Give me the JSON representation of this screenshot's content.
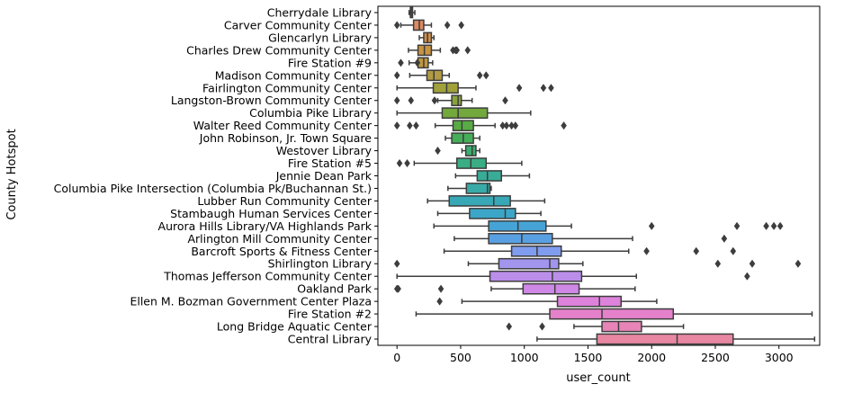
{
  "chart_data": {
    "type": "boxplot",
    "orientation": "horizontal",
    "xlabel": "user_count",
    "ylabel": "County Hotspot",
    "xlim": [
      -150,
      3320
    ],
    "xticks": [
      0,
      500,
      1000,
      1500,
      2000,
      2500,
      3000
    ],
    "grid": false,
    "categories": [
      "Cherrydale Library",
      "Carver Community Center",
      "Glencarlyn Library",
      "Charles Drew Community Center",
      "Fire Station #9",
      "Madison Community Center",
      "Fairlington Community Center",
      "Langston-Brown Community Center",
      "Columbia Pike Library",
      "Walter Reed Community Center",
      "John Robinson, Jr. Town Square",
      "Westover Library",
      "Fire Station #5",
      "Jennie Dean Park",
      "Columbia Pike Intersection (Columbia Pk/Buchannan St.)",
      "Lubber Run Community Center",
      "Stambaugh  Human Services Center",
      "Aurora Hills Library/VA Highlands Park",
      "Arlington Mill Community Center",
      "Barcroft Sports & Fitness Center",
      "Shirlington Library",
      "Thomas Jefferson Community Center",
      "Oakland Park",
      "Ellen M. Bozman Government Center Plaza",
      "Fire Station #2",
      "Long Bridge Aquatic Center",
      "Central Library"
    ],
    "boxes": [
      {
        "whislo": 95,
        "q1": 105,
        "med": 112,
        "q3": 122,
        "whishi": 140,
        "fliers": [],
        "color": "#e8827c"
      },
      {
        "whislo": 30,
        "q1": 130,
        "med": 175,
        "q3": 210,
        "whishi": 270,
        "fliers": [
          0,
          395,
          505
        ],
        "color": "#dc8a5f"
      },
      {
        "whislo": 175,
        "q1": 210,
        "med": 240,
        "q3": 270,
        "whishi": 290,
        "fliers": [],
        "color": "#d28f46"
      },
      {
        "whislo": 90,
        "q1": 165,
        "med": 215,
        "q3": 270,
        "whishi": 340,
        "fliers": [
          440,
          460,
          470,
          555
        ],
        "color": "#c99440"
      },
      {
        "whislo": 95,
        "q1": 165,
        "med": 210,
        "q3": 245,
        "whishi": 280,
        "fliers": [
          30,
          160
        ],
        "color": "#be9740"
      },
      {
        "whislo": 100,
        "q1": 235,
        "med": 290,
        "q3": 355,
        "whishi": 410,
        "fliers": [
          0,
          650,
          700
        ],
        "color": "#b29b42"
      },
      {
        "whislo": 0,
        "q1": 285,
        "med": 390,
        "q3": 480,
        "whishi": 620,
        "fliers": [
          960,
          1150,
          1210
        ],
        "color": "#a1a13c"
      },
      {
        "whislo": 320,
        "q1": 430,
        "med": 480,
        "q3": 505,
        "whishi": 590,
        "fliers": [
          0,
          110,
          295,
          850
        ],
        "color": "#8aa43c"
      },
      {
        "whislo": 0,
        "q1": 355,
        "med": 480,
        "q3": 710,
        "whishi": 1050,
        "fliers": [],
        "color": "#72a83c"
      },
      {
        "whislo": 300,
        "q1": 440,
        "med": 510,
        "q3": 600,
        "whishi": 770,
        "fliers": [
          0,
          100,
          150,
          830,
          860,
          900,
          930,
          1310
        ],
        "color": "#58ab45"
      },
      {
        "whislo": 380,
        "q1": 430,
        "med": 520,
        "q3": 600,
        "whishi": 650,
        "fliers": [],
        "color": "#45ae58"
      },
      {
        "whislo": 510,
        "q1": 540,
        "med": 590,
        "q3": 620,
        "whishi": 650,
        "fliers": [
          320
        ],
        "color": "#3fad70"
      },
      {
        "whislo": 135,
        "q1": 470,
        "med": 580,
        "q3": 700,
        "whishi": 980,
        "fliers": [
          20,
          80
        ],
        "color": "#3aad84"
      },
      {
        "whislo": 460,
        "q1": 630,
        "med": 710,
        "q3": 820,
        "whishi": 1040,
        "fliers": [],
        "color": "#38ac96"
      },
      {
        "whislo": 400,
        "q1": 545,
        "med": 710,
        "q3": 730,
        "whishi": 740,
        "fliers": [],
        "color": "#38aaa8"
      },
      {
        "whislo": 240,
        "q1": 410,
        "med": 760,
        "q3": 890,
        "whishi": 1160,
        "fliers": [],
        "color": "#38a8b7"
      },
      {
        "whislo": 320,
        "q1": 570,
        "med": 850,
        "q3": 930,
        "whishi": 1130,
        "fliers": [],
        "color": "#3ba6c8"
      },
      {
        "whislo": 290,
        "q1": 720,
        "med": 950,
        "q3": 1170,
        "whishi": 1370,
        "fliers": [
          2000,
          2670,
          2900,
          2960,
          3010
        ],
        "color": "#46a3d6"
      },
      {
        "whislo": 450,
        "q1": 720,
        "med": 980,
        "q3": 1220,
        "whishi": 1850,
        "fliers": [
          2570
        ],
        "color": "#59a0e3"
      },
      {
        "whislo": 370,
        "q1": 900,
        "med": 1100,
        "q3": 1290,
        "whishi": 1820,
        "fliers": [
          1960,
          2350,
          2640
        ],
        "color": "#7f9cee"
      },
      {
        "whislo": 560,
        "q1": 800,
        "med": 1200,
        "q3": 1270,
        "whishi": 1460,
        "fliers": [
          0,
          2520,
          2790,
          3150
        ],
        "color": "#a295ee"
      },
      {
        "whislo": 0,
        "q1": 730,
        "med": 1220,
        "q3": 1450,
        "whishi": 1880,
        "fliers": [
          2750
        ],
        "color": "#bb8eea"
      },
      {
        "whislo": 740,
        "q1": 990,
        "med": 1240,
        "q3": 1430,
        "whishi": 1870,
        "fliers": [
          0,
          10,
          345
        ],
        "color": "#cf88e6"
      },
      {
        "whislo": 510,
        "q1": 1260,
        "med": 1590,
        "q3": 1760,
        "whishi": 2040,
        "fliers": [
          335
        ],
        "color": "#de83dc"
      },
      {
        "whislo": 150,
        "q1": 1200,
        "med": 1610,
        "q3": 2170,
        "whishi": 3260,
        "fliers": [],
        "color": "#e581cb"
      },
      {
        "whislo": 1390,
        "q1": 1610,
        "med": 1740,
        "q3": 1920,
        "whishi": 2250,
        "fliers": [
          880,
          1140
        ],
        "color": "#e884b8"
      },
      {
        "whislo": 1100,
        "q1": 1570,
        "med": 2200,
        "q3": 2640,
        "whishi": 3280,
        "fliers": [],
        "color": "#e887a2"
      }
    ]
  }
}
